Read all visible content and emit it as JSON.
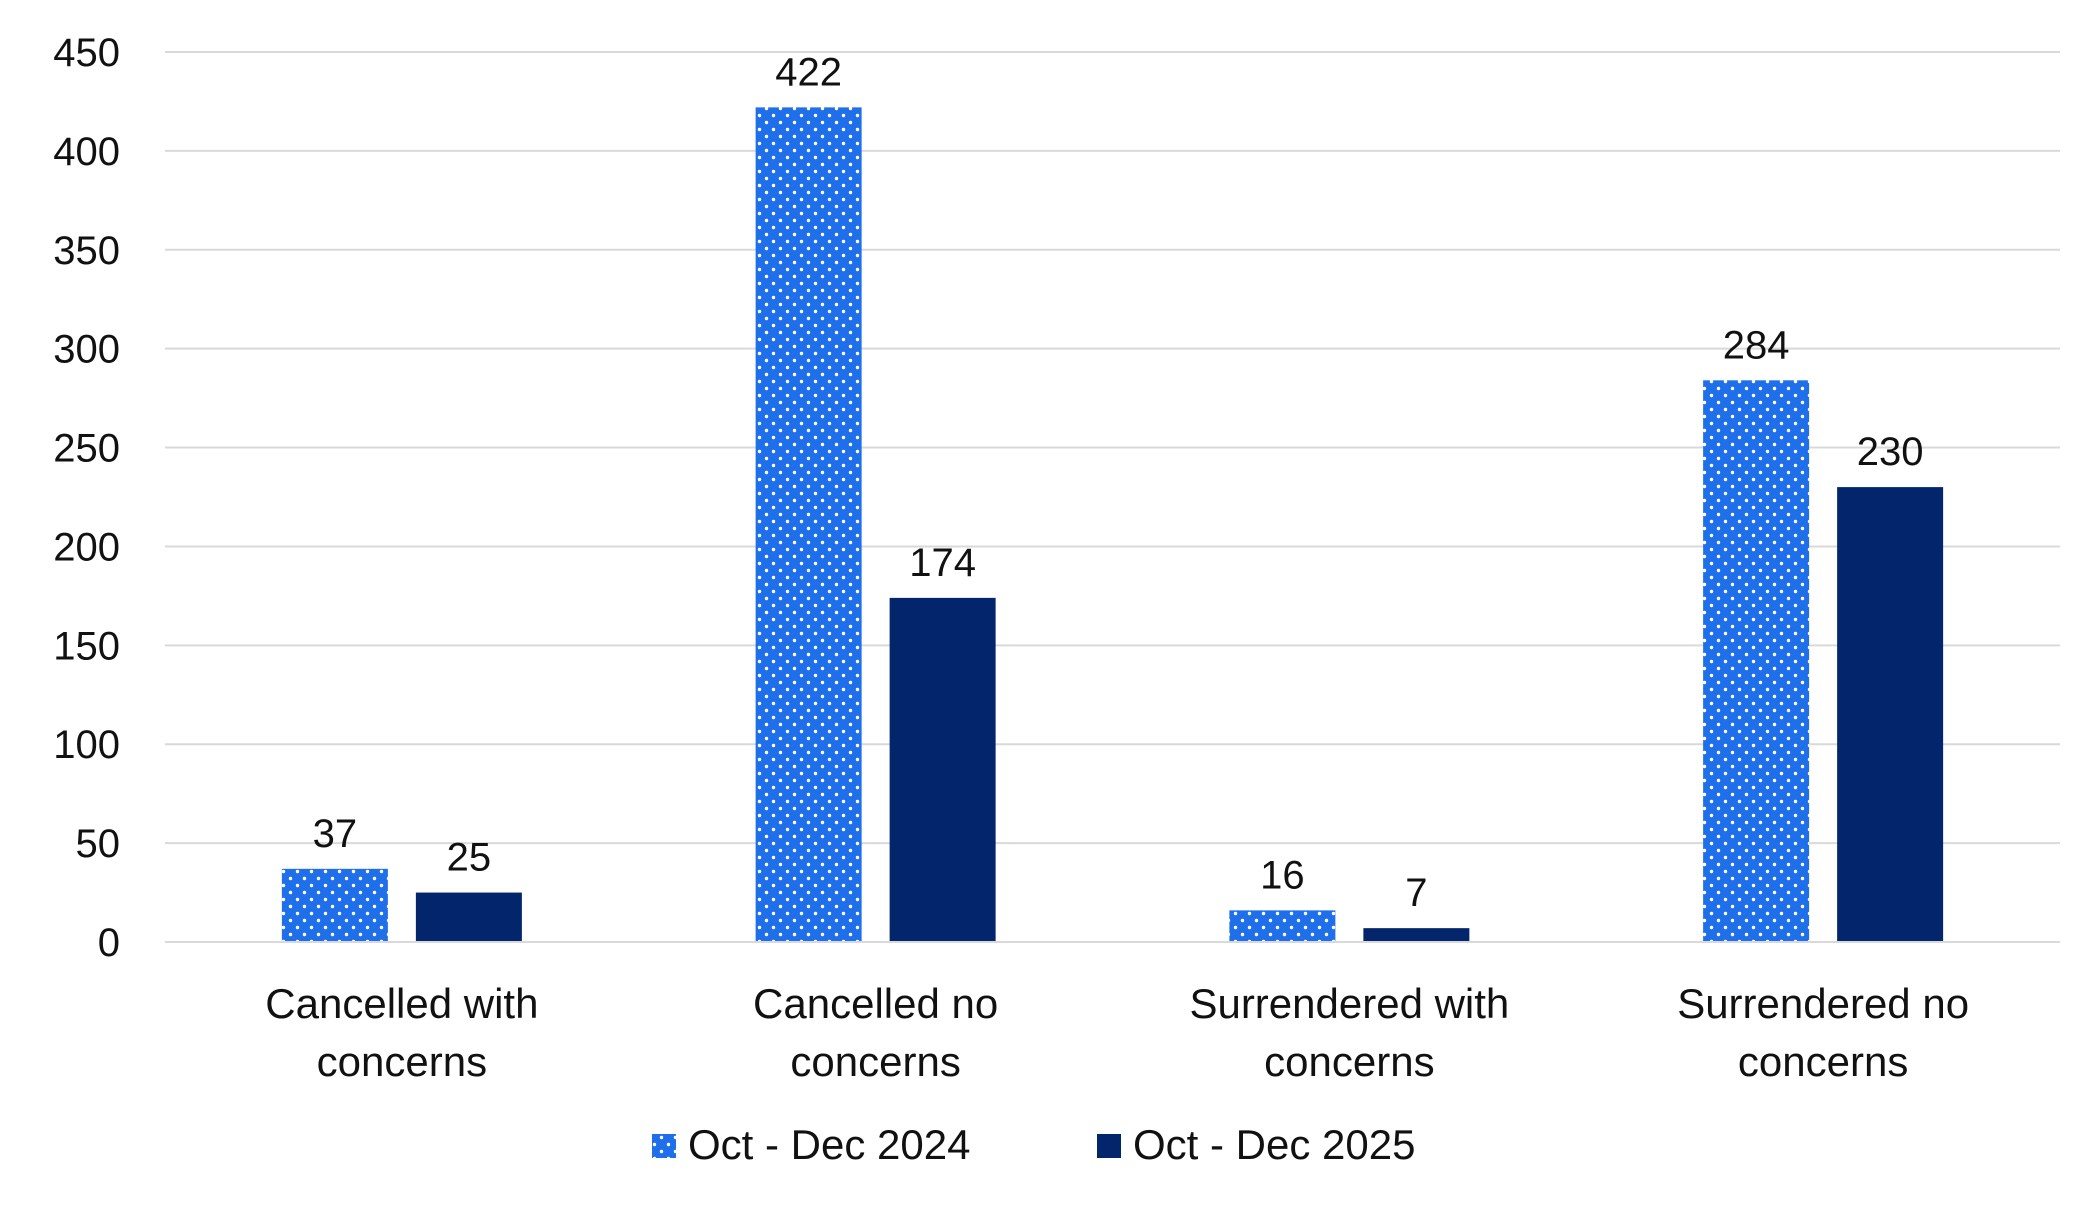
{
  "chart_data": {
    "type": "bar",
    "title": "",
    "xlabel": "",
    "ylabel": "",
    "ylim": [
      0,
      450
    ],
    "yticks": [
      0,
      50,
      100,
      150,
      200,
      250,
      300,
      350,
      400,
      450
    ],
    "grid": true,
    "legend_position": "bottom-center",
    "categories": [
      [
        "Cancelled with",
        "concerns"
      ],
      [
        "Cancelled no",
        "concerns"
      ],
      [
        "Surrendered with",
        "concerns"
      ],
      [
        "Surrendered no",
        "concerns"
      ]
    ],
    "series": [
      {
        "name": "Oct - Dec 2024",
        "values": [
          37,
          422,
          16,
          284
        ],
        "color": "#1F6FEB",
        "pattern": "dotted"
      },
      {
        "name": "Oct - Dec 2025",
        "values": [
          25,
          174,
          7,
          230
        ],
        "color": "#03256C",
        "pattern": "solid"
      }
    ],
    "colors": {
      "grid": "#D9D9D9",
      "text": "#111111"
    }
  }
}
